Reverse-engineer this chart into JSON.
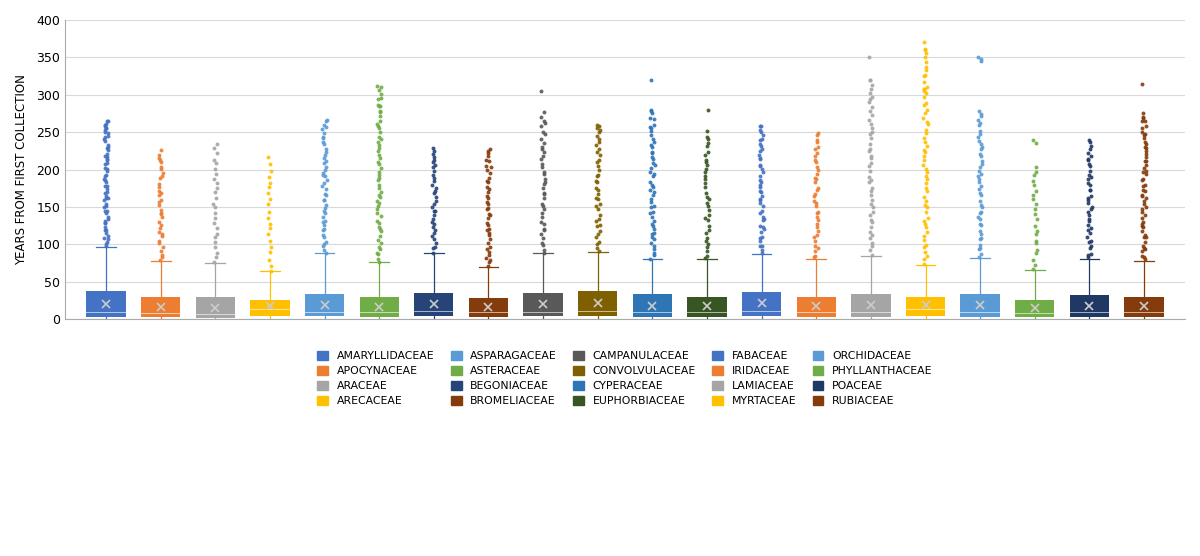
{
  "families": [
    "AMARYLLIDACEAE",
    "APOCYNACEAE",
    "ARACEAE",
    "ARECACEAE",
    "ASPARAGACEAE",
    "ASTERACEAE",
    "BEGONIACEAE",
    "BROMELIACEAE",
    "CAMPANULACEAE",
    "CONVOLVULACEAE",
    "CYPERACEAE",
    "EUPHORBIACEAE",
    "FABACEAE",
    "IRIDACEAE",
    "LAMIACEAE",
    "MYRTACEAE",
    "ORCHIDACEAE",
    "PHYLLANTHACEAE",
    "POACEAE",
    "RUBIACEAE"
  ],
  "colors": [
    "#4472C4",
    "#ED7D31",
    "#A5A5A5",
    "#FFC000",
    "#5B9BD5",
    "#70AD47",
    "#264478",
    "#843C0C",
    "#595959",
    "#7F6000",
    "#2E75B6",
    "#375623",
    "#4472C4",
    "#ED7D31",
    "#A5A5A5",
    "#FFC000",
    "#5B9BD5",
    "#70AD47",
    "#203864",
    "#843C0C"
  ],
  "ylabel": "YEARS FROM FIRST COLLECTION",
  "ylim": [
    0,
    400
  ],
  "yticks": [
    0,
    50,
    100,
    150,
    200,
    250,
    300,
    350,
    400
  ],
  "boxes": {
    "AMARYLLIDACEAE": {
      "q1": 3,
      "med": 9,
      "q3": 38,
      "mean": 20,
      "whislo": 0,
      "whishi": 97,
      "n_dots": 60,
      "dot_min": 98,
      "dot_max": 265,
      "extras": [
        265,
        260,
        255
      ]
    },
    "APOCYNACEAE": {
      "q1": 3,
      "med": 8,
      "q3": 30,
      "mean": 16,
      "whislo": 0,
      "whishi": 78,
      "n_dots": 35,
      "dot_min": 79,
      "dot_max": 225,
      "extras": []
    },
    "ARACEAE": {
      "q1": 2,
      "med": 7,
      "q3": 29,
      "mean": 15,
      "whislo": 0,
      "whishi": 75,
      "n_dots": 25,
      "dot_min": 76,
      "dot_max": 235,
      "extras": []
    },
    "ARECACEAE": {
      "q1": 4,
      "med": 14,
      "q3": 25,
      "mean": 18,
      "whislo": 0,
      "whishi": 64,
      "n_dots": 20,
      "dot_min": 65,
      "dot_max": 215,
      "extras": []
    },
    "ASPARAGACEAE": {
      "q1": 4,
      "med": 10,
      "q3": 33,
      "mean": 19,
      "whislo": 0,
      "whishi": 88,
      "n_dots": 45,
      "dot_min": 89,
      "dot_max": 265,
      "extras": [
        265
      ]
    },
    "ASTERACEAE": {
      "q1": 3,
      "med": 9,
      "q3": 29,
      "mean": 16,
      "whislo": 0,
      "whishi": 76,
      "n_dots": 55,
      "dot_min": 77,
      "dot_max": 310,
      "extras": [
        310,
        285
      ]
    },
    "BEGONIACEAE": {
      "q1": 4,
      "med": 11,
      "q3": 35,
      "mean": 20,
      "whislo": 0,
      "whishi": 88,
      "n_dots": 35,
      "dot_min": 89,
      "dot_max": 230,
      "extras": []
    },
    "BROMELIACEAE": {
      "q1": 3,
      "med": 9,
      "q3": 28,
      "mean": 16,
      "whislo": 0,
      "whishi": 70,
      "n_dots": 40,
      "dot_min": 71,
      "dot_max": 225,
      "extras": [
        225
      ]
    },
    "CAMPANULACEAE": {
      "q1": 4,
      "med": 10,
      "q3": 35,
      "mean": 20,
      "whislo": 0,
      "whishi": 88,
      "n_dots": 40,
      "dot_min": 89,
      "dot_max": 275,
      "extras": [
        305
      ]
    },
    "CONVOLVULACEAE": {
      "q1": 4,
      "med": 11,
      "q3": 37,
      "mean": 21,
      "whislo": 0,
      "whishi": 90,
      "n_dots": 38,
      "dot_min": 91,
      "dot_max": 258,
      "extras": [
        258,
        256
      ]
    },
    "CYPERACEAE": {
      "q1": 3,
      "med": 9,
      "q3": 33,
      "mean": 18,
      "whislo": 0,
      "whishi": 80,
      "n_dots": 50,
      "dot_min": 81,
      "dot_max": 278,
      "extras": [
        320,
        278
      ]
    },
    "EUPHORBIACEAE": {
      "q1": 3,
      "med": 9,
      "q3": 30,
      "mean": 17,
      "whislo": 0,
      "whishi": 80,
      "n_dots": 35,
      "dot_min": 81,
      "dot_max": 250,
      "extras": [
        280
      ]
    },
    "FABACEAE": {
      "q1": 4,
      "med": 11,
      "q3": 36,
      "mean": 21,
      "whislo": 0,
      "whishi": 87,
      "n_dots": 45,
      "dot_min": 88,
      "dot_max": 258,
      "extras": [
        258
      ]
    },
    "IRIDACEAE": {
      "q1": 3,
      "med": 9,
      "q3": 30,
      "mean": 17,
      "whislo": 0,
      "whishi": 80,
      "n_dots": 38,
      "dot_min": 81,
      "dot_max": 250,
      "extras": []
    },
    "LAMIACEAE": {
      "q1": 3,
      "med": 9,
      "q3": 34,
      "mean": 19,
      "whislo": 0,
      "whishi": 85,
      "n_dots": 45,
      "dot_min": 86,
      "dot_max": 320,
      "extras": [
        350,
        320
      ]
    },
    "MYRTACEAE": {
      "q1": 4,
      "med": 13,
      "q3": 29,
      "mean": 19,
      "whislo": 0,
      "whishi": 73,
      "n_dots": 55,
      "dot_min": 74,
      "dot_max": 360,
      "extras": [
        370,
        360,
        308,
        305
      ]
    },
    "ORCHIDACEAE": {
      "q1": 3,
      "med": 9,
      "q3": 34,
      "mean": 19,
      "whislo": 0,
      "whishi": 82,
      "n_dots": 45,
      "dot_min": 83,
      "dot_max": 280,
      "extras": [
        350,
        348,
        345
      ]
    },
    "PHYLLANTHACEAE": {
      "q1": 3,
      "med": 8,
      "q3": 26,
      "mean": 15,
      "whislo": 0,
      "whishi": 66,
      "n_dots": 22,
      "dot_min": 67,
      "dot_max": 205,
      "extras": [
        240,
        235
      ]
    },
    "POACEAE": {
      "q1": 3,
      "med": 9,
      "q3": 32,
      "mean": 18,
      "whislo": 0,
      "whishi": 80,
      "n_dots": 40,
      "dot_min": 81,
      "dot_max": 240,
      "extras": []
    },
    "RUBIACEAE": {
      "q1": 3,
      "med": 9,
      "q3": 30,
      "mean": 17,
      "whislo": 0,
      "whishi": 78,
      "n_dots": 55,
      "dot_min": 79,
      "dot_max": 270,
      "extras": [
        315,
        275,
        270
      ]
    }
  },
  "legend_order": [
    "AMARYLLIDACEAE",
    "APOCYNACEAE",
    "ARACEAE",
    "ARECACEAE",
    "ASPARAGACEAE",
    "ASTERACEAE",
    "BEGONIACEAE",
    "BROMELIACEAE",
    "CAMPANULACEAE",
    "CONVOLVULACEAE",
    "CYPERACEAE",
    "EUPHORBIACEAE",
    "FABACEAE",
    "IRIDACEAE",
    "LAMIACEAE",
    "MYRTACEAE",
    "ORCHIDACEAE",
    "PHYLLANTHACEAE",
    "POACEAE",
    "RUBIACEAE"
  ],
  "background_color": "#FFFFFF",
  "grid_color": "#D9D9D9",
  "box_width": 0.72,
  "dot_size": 8,
  "jitter_amount": 0.04
}
